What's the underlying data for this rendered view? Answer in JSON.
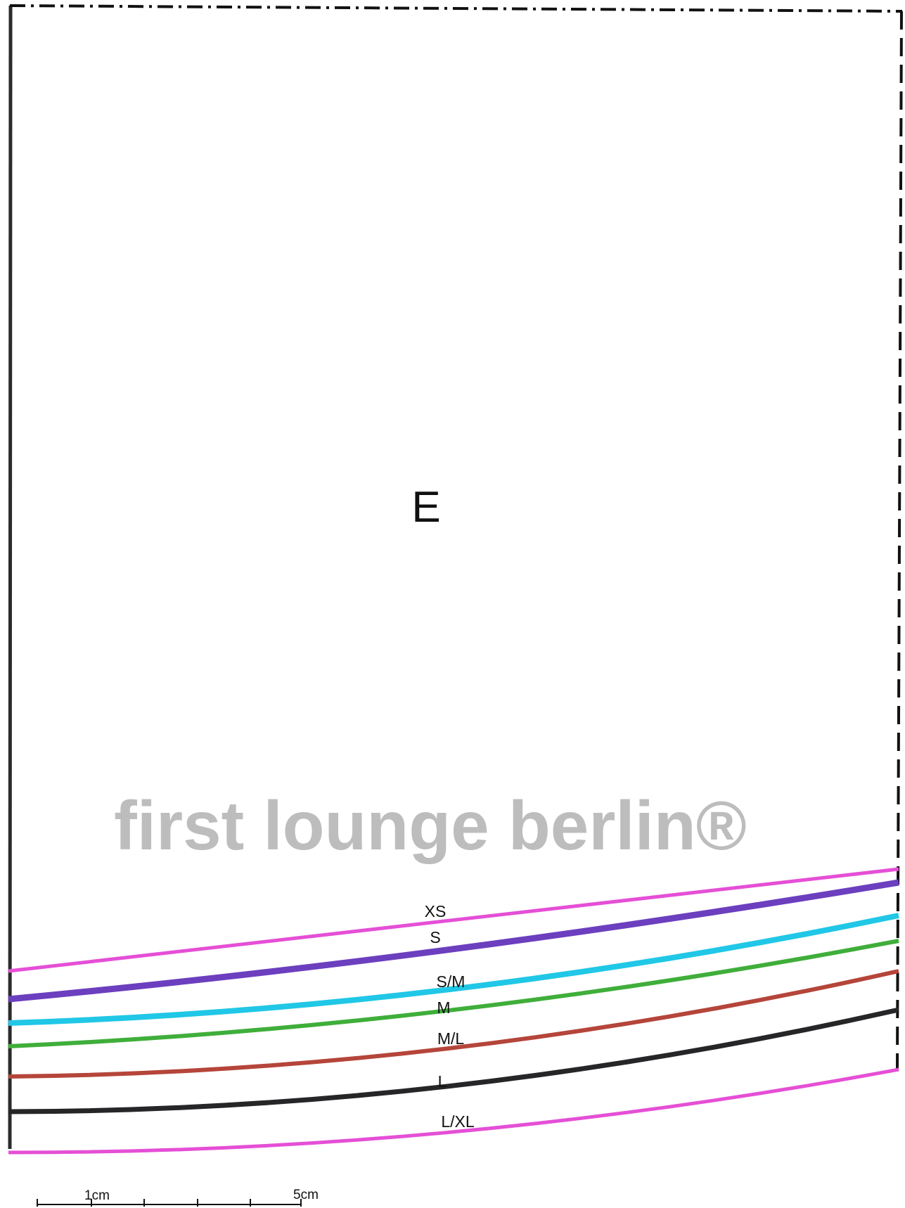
{
  "piece_letter": "E",
  "watermark": "first lounge berlin®",
  "scale_bar": {
    "label_start": "1cm",
    "label_end": "5cm"
  },
  "size_lines": [
    {
      "label": "XS",
      "color": "#e54fd6"
    },
    {
      "label": "S",
      "color": "#6c3fbf"
    },
    {
      "label": "S/M",
      "color": "#21c7e6"
    },
    {
      "label": "M",
      "color": "#3fae3a"
    },
    {
      "label": "M/L",
      "color": "#b5453a"
    },
    {
      "label": "L",
      "color": "#262628"
    },
    {
      "label": "L/XL",
      "color": "#e54fd6"
    }
  ],
  "outline": {
    "solid_color": "#2b2b2b",
    "dashed_color": "#111111"
  }
}
